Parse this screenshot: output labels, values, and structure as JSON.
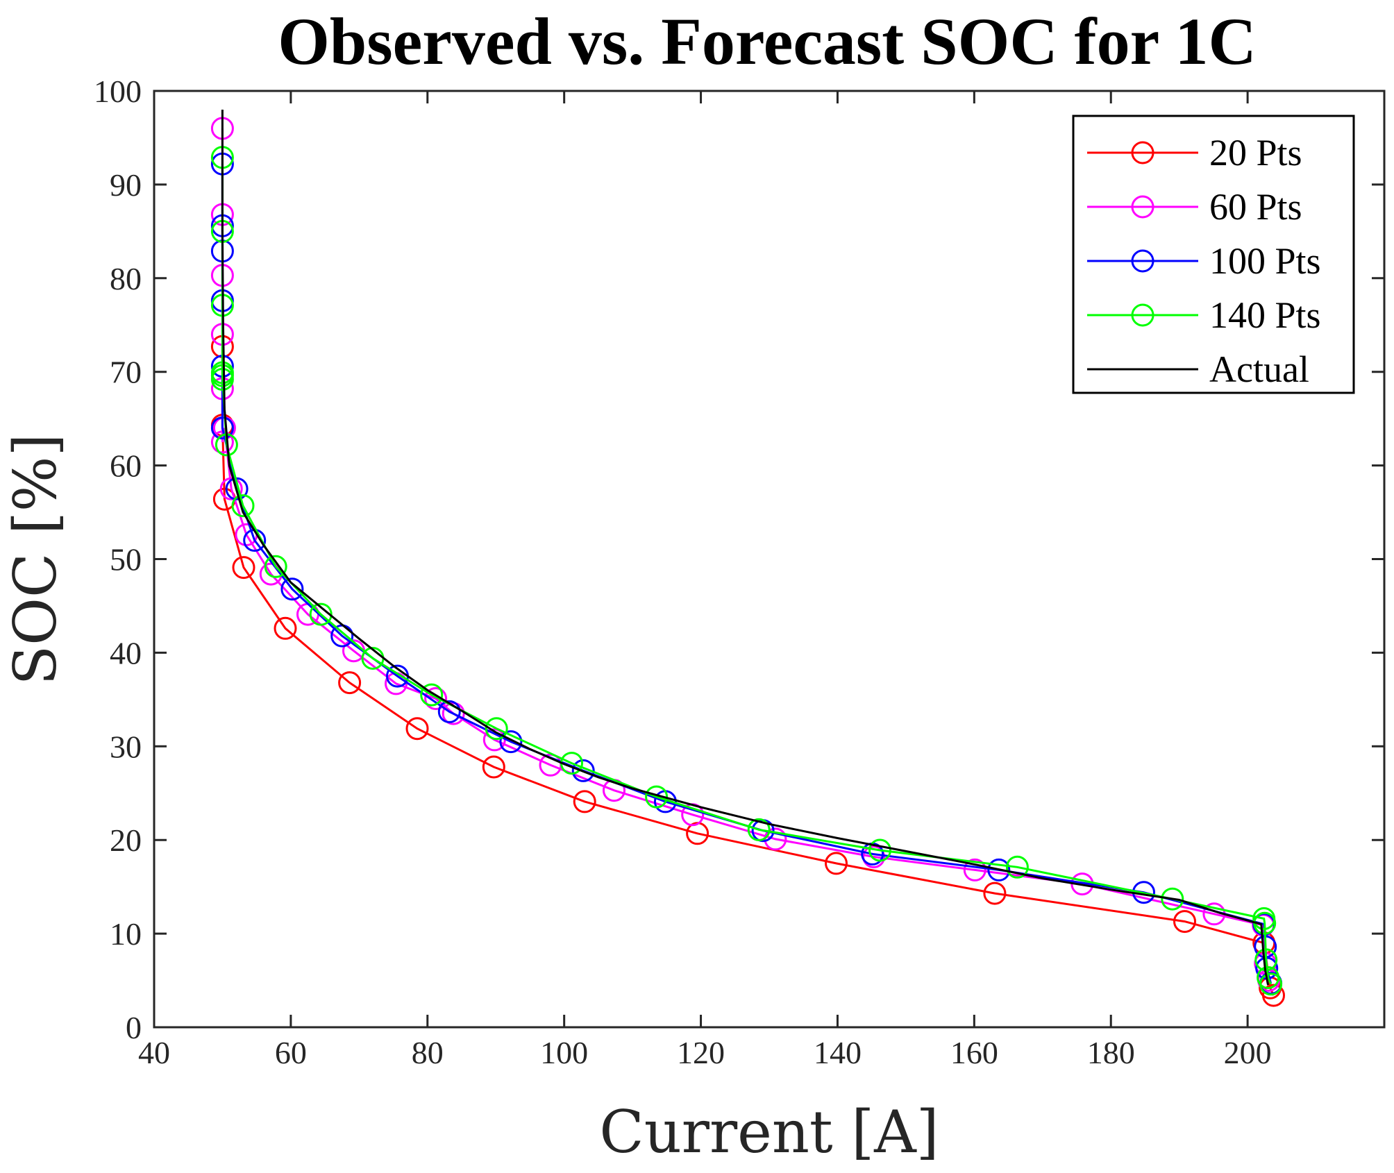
{
  "chart_data": {
    "type": "line",
    "title": "Observed vs. Forecast SOC for 1C",
    "xlabel": "Current [A]",
    "ylabel": "SOC [%]",
    "xlim": [
      40,
      220
    ],
    "ylim": [
      0,
      100
    ],
    "xticks": [
      "40",
      "60",
      "80",
      "100",
      "120",
      "140",
      "160",
      "180",
      "200"
    ],
    "yticks": [
      "0",
      "10",
      "20",
      "30",
      "40",
      "50",
      "60",
      "70",
      "80",
      "90",
      "100"
    ],
    "legend_position": "top-right",
    "series": [
      {
        "name": "20 Pts",
        "color": "#ff0000",
        "marker": "circle",
        "x": [
          50,
          50,
          50.3,
          53.1,
          59.2,
          68.6,
          78.5,
          89.7,
          103,
          119.5,
          139.8,
          163,
          190.8,
          202.4,
          203.3,
          203.8
        ],
        "y": [
          72.7,
          64.3,
          56.4,
          49.1,
          42.6,
          36.8,
          31.9,
          27.8,
          24.1,
          20.7,
          17.5,
          14.3,
          11.3,
          9.0,
          4.2,
          3.4
        ]
      },
      {
        "name": "60 Pts",
        "color": "#ff00ff",
        "marker": "circle",
        "x": [
          50,
          50,
          50,
          50,
          50,
          50,
          50.3,
          51.3,
          53.5,
          57.1,
          62.5,
          69.2,
          75.4,
          81.2,
          83.8,
          89.8,
          98,
          107.3,
          118.8,
          130.9,
          145.3,
          160.1,
          175.8,
          195.1,
          202.3,
          202.6,
          203.1
        ],
        "y": [
          96.0,
          86.8,
          80.3,
          74.0,
          68.2,
          62.5,
          64.0,
          57.5,
          52.6,
          48.4,
          44.1,
          40.2,
          36.7,
          35.1,
          33.5,
          30.7,
          28.0,
          25.3,
          22.7,
          20.1,
          18.2,
          16.8,
          15.3,
          12.1,
          10.9,
          6.8,
          5.0
        ]
      },
      {
        "name": "100 Pts",
        "color": "#0000ff",
        "marker": "circle",
        "x": [
          50,
          50,
          50,
          50,
          50,
          50,
          52.1,
          54.7,
          60.2,
          67.5,
          75.6,
          83.2,
          92.2,
          102.8,
          114.8,
          129.1,
          145.1,
          163.6,
          184.8,
          202.4,
          202.6,
          202.8,
          203.4
        ],
        "y": [
          92.2,
          85.6,
          82.9,
          77.6,
          70.6,
          64.0,
          57.5,
          52.0,
          46.8,
          41.8,
          37.5,
          33.7,
          30.5,
          27.4,
          24.1,
          21.0,
          18.5,
          16.8,
          14.4,
          11.0,
          8.6,
          6.3,
          4.7
        ]
      },
      {
        "name": "140 Pts",
        "color": "#00ff00",
        "marker": "circle",
        "x": [
          50,
          50,
          50,
          50,
          50,
          50,
          50.6,
          53,
          57.8,
          64.4,
          72,
          80.6,
          90.1,
          101.1,
          113.5,
          128.5,
          146.2,
          166.3,
          189,
          202.4,
          202.5,
          202.7,
          203,
          203.4
        ],
        "y": [
          92.9,
          85.0,
          77.1,
          69.9,
          69.2,
          69.6,
          62.2,
          55.7,
          49.2,
          44.1,
          39.4,
          35.5,
          31.9,
          28.2,
          24.6,
          21.1,
          18.9,
          17.1,
          13.7,
          11.6,
          11.1,
          7.2,
          5.3,
          4.6
        ]
      },
      {
        "name": "Actual",
        "color": "#000000",
        "marker": "none",
        "x": [
          50,
          50,
          50.1,
          50.3,
          51,
          53,
          56,
          60,
          65,
          70,
          75,
          80,
          85,
          90,
          95,
          100,
          105,
          110,
          120,
          130,
          140,
          150,
          160,
          170,
          180,
          190,
          196,
          202,
          202.3,
          202.6,
          203
        ],
        "y": [
          98,
          85,
          75,
          66,
          60,
          55,
          51.5,
          47.5,
          44.5,
          41.5,
          38.6,
          36,
          33.8,
          31.5,
          29.7,
          28.1,
          26.7,
          25.5,
          23.5,
          21.7,
          20.2,
          18.8,
          17.4,
          15.9,
          14.7,
          13.6,
          12.2,
          11,
          8,
          6,
          4.5
        ]
      }
    ]
  }
}
